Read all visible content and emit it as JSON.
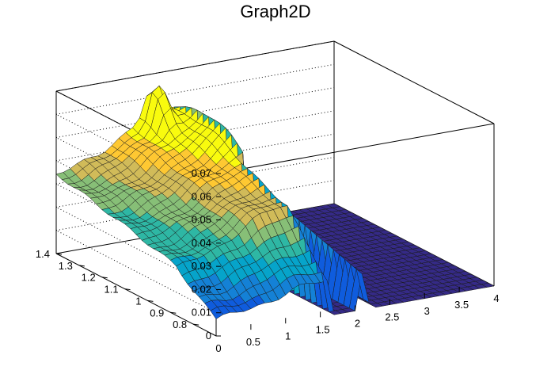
{
  "chart_data": {
    "type": "surface",
    "title": "Graph2D",
    "xlabel": "",
    "ylabel": "",
    "zlabel": "",
    "x_range": [
      0,
      4
    ],
    "y_range": [
      0.7,
      1.4
    ],
    "z_range": [
      0,
      0.07
    ],
    "x_ticks": [
      0,
      0.5,
      1,
      1.5,
      2,
      2.5,
      3,
      3.5,
      4
    ],
    "y_ticks": [
      0.8,
      0.9,
      1,
      1.1,
      1.2,
      1.3,
      1.4
    ],
    "z_ticks": [
      0,
      0.01,
      0.02,
      0.03,
      0.04,
      0.05,
      0.06,
      0.07
    ],
    "x_tick_labels": [
      "0",
      "0.5",
      "1",
      "1.5",
      "2",
      "2.5",
      "3",
      "3.5",
      "4"
    ],
    "y_tick_labels": [
      "0.8",
      "0.9",
      "1",
      "1.1",
      "1.2",
      "1.3",
      "1.4"
    ],
    "z_tick_labels": [
      "0",
      "0.01",
      "0.02",
      "0.03",
      "0.04",
      "0.05",
      "0.06",
      "0.07"
    ],
    "grid": true,
    "palette": "viridis-like (blue to yellow)",
    "surface_colors": [
      "#352a87",
      "#0f5cdd",
      "#1481d6",
      "#06a4ca",
      "#2eb7a4",
      "#87bf77",
      "#d1bb59",
      "#fec832",
      "#f9fb0e"
    ]
  }
}
